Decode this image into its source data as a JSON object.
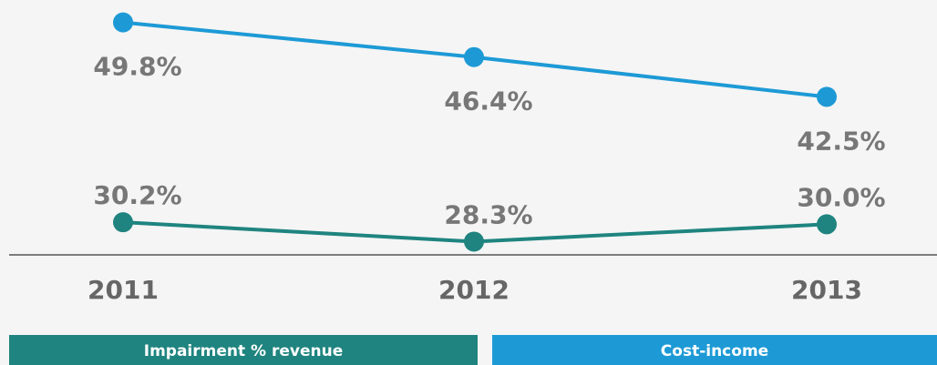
{
  "chart_data": {
    "type": "line",
    "categories": [
      "2011",
      "2012",
      "2013"
    ],
    "series": [
      {
        "name": "Impairment % revenue",
        "color": "#1f847f",
        "values": [
          30.2,
          28.3,
          30.0
        ],
        "value_labels": [
          "30.2%",
          "28.3%",
          "30.0%"
        ]
      },
      {
        "name": "Cost-income",
        "color": "#1d9ad6",
        "values": [
          49.8,
          46.4,
          42.5
        ],
        "value_labels": [
          "49.8%",
          "46.4%",
          "42.5%"
        ]
      }
    ],
    "ylim": [
      27,
      52
    ]
  }
}
